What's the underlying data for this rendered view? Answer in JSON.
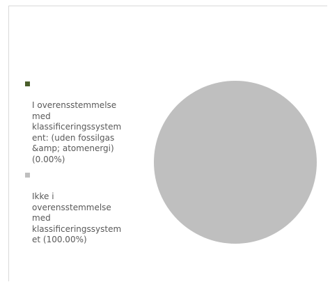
{
  "chart_data": {
    "type": "pie",
    "title": "",
    "categories": [
      "I overensstemmelse med klassificeringssystem ent: (uden fossilgas &amp; atomenergi) (0.00%)",
      "Ikke i overensstemmelse med klassificeringssystem et (100.00%)"
    ],
    "values": [
      0.0,
      100.0
    ],
    "colors": [
      "#4a5e2b",
      "#bfbfbf"
    ],
    "legend_position": "left"
  },
  "legend": {
    "items": [
      {
        "label": "I overensstemmelse\nmed\nklassificeringssystem\nent: (uden fossilgas\n&amp; atomenergi)\n(0.00%)",
        "color": "#4a5e2b"
      },
      {
        "label": "Ikke i\noverensstemmelse\nmed\nklassificeringssystem\net (100.00%)",
        "color": "#bfbfbf"
      }
    ]
  }
}
